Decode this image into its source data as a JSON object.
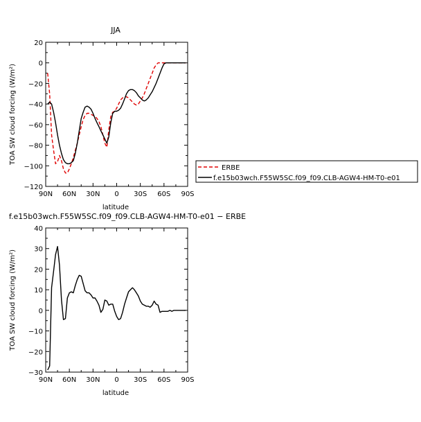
{
  "chart_data": [
    {
      "type": "line",
      "title": "JJA",
      "xlabel": "latitude",
      "ylabel": "TOA SW cloud forcing (W/m²)",
      "x_tick_labels": [
        "90N",
        "60N",
        "30N",
        "0",
        "30S",
        "60S",
        "90S"
      ],
      "xlim": [
        90,
        -90
      ],
      "ylim": [
        -120,
        20
      ],
      "y_ticks": [
        -120,
        -100,
        -80,
        -60,
        -40,
        -20,
        0,
        20
      ],
      "y_tick_labels": [
        "−120",
        "−100",
        "−80",
        "−60",
        "−40",
        "−20",
        "0",
        "20"
      ],
      "legend_position": "right",
      "series": [
        {
          "name": "ERBE",
          "color": "#e00000",
          "dash": "dashed",
          "x": [
            87.5,
            85,
            82.5,
            80,
            77.5,
            75,
            72.5,
            70,
            67.5,
            65,
            62.5,
            60,
            57.5,
            55,
            52.5,
            50,
            47.5,
            45,
            42.5,
            40,
            37.5,
            35,
            32.5,
            30,
            27.5,
            25,
            22.5,
            20,
            17.5,
            15,
            12.5,
            10,
            7.5,
            5,
            2.5,
            0,
            -2.5,
            -5,
            -7.5,
            -10,
            -12.5,
            -15,
            -17.5,
            -20,
            -22.5,
            -25,
            -27.5,
            -30,
            -32.5,
            -35,
            -37.5,
            -40,
            -42.5,
            -45,
            -47.5,
            -50,
            -52.5,
            -55,
            -57.5,
            -60,
            -62.5,
            -65,
            -67.5,
            -70,
            -72.5,
            -75,
            -77.5,
            -80,
            -82.5,
            -85,
            -87.5
          ],
          "values": [
            -10,
            -30,
            -70,
            -85,
            -98,
            -96,
            -90,
            -95,
            -103,
            -107,
            -107,
            -103,
            -98,
            -92,
            -85,
            -78,
            -70,
            -62,
            -55,
            -51,
            -49,
            -49,
            -50,
            -51,
            -52,
            -54,
            -57,
            -62,
            -70,
            -78,
            -82,
            -65,
            -52,
            -48,
            -47,
            -44,
            -40,
            -36,
            -34,
            -33,
            -33,
            -34,
            -36,
            -38,
            -40,
            -41,
            -40,
            -37,
            -34,
            -30,
            -25,
            -20,
            -15,
            -10,
            -5,
            -2,
            0,
            0,
            0,
            0,
            0,
            0,
            0,
            0,
            0,
            0,
            0,
            0,
            0,
            0,
            0
          ]
        },
        {
          "name": "f.e15b03wch.F55W5SC.f09_f09.CLB-AGW4-HM-T0-e01",
          "color": "#000000",
          "dash": "solid",
          "x": [
            87.5,
            85,
            82.5,
            80,
            77.5,
            75,
            72.5,
            70,
            67.5,
            65,
            62.5,
            60,
            57.5,
            55,
            52.5,
            50,
            47.5,
            45,
            42.5,
            40,
            37.5,
            35,
            32.5,
            30,
            27.5,
            25,
            22.5,
            20,
            17.5,
            15,
            12.5,
            10,
            7.5,
            5,
            2.5,
            0,
            -2.5,
            -5,
            -7.5,
            -10,
            -12.5,
            -15,
            -17.5,
            -20,
            -22.5,
            -25,
            -27.5,
            -30,
            -32.5,
            -35,
            -37.5,
            -40,
            -42.5,
            -45,
            -47.5,
            -50,
            -52.5,
            -55,
            -57.5,
            -60,
            -62.5,
            -65,
            -67.5,
            -70,
            -72.5,
            -75,
            -77.5,
            -80,
            -82.5,
            -85,
            -87.5
          ],
          "values": [
            -40,
            -38,
            -40,
            -48,
            -58,
            -70,
            -80,
            -88,
            -94,
            -97,
            -98,
            -98,
            -97,
            -95,
            -88,
            -78,
            -66,
            -54,
            -48,
            -43,
            -42,
            -43,
            -45,
            -49,
            -54,
            -58,
            -62,
            -66,
            -70,
            -74,
            -78,
            -72,
            -58,
            -49,
            -47,
            -47,
            -46,
            -44,
            -40,
            -35,
            -30,
            -27,
            -26,
            -26,
            -27,
            -29,
            -32,
            -34,
            -36,
            -37,
            -36,
            -34,
            -31,
            -28,
            -24,
            -20,
            -15,
            -10,
            -5,
            -1,
            0,
            0,
            0,
            0,
            0,
            0,
            0,
            0,
            0,
            0,
            0
          ]
        }
      ]
    },
    {
      "type": "line",
      "title": "f.e15b03wch.F55W5SC.f09_f09.CLB-AGW4-HM-T0-e01 − ERBE",
      "xlabel": "latitude",
      "ylabel": "TOA SW cloud forcing (W/m²)",
      "x_tick_labels": [
        "90N",
        "60N",
        "30N",
        "0",
        "30S",
        "60S",
        "90S"
      ],
      "xlim": [
        90,
        -90
      ],
      "ylim": [
        -30,
        40
      ],
      "y_ticks": [
        -30,
        -20,
        -10,
        0,
        10,
        20,
        30,
        40
      ],
      "y_tick_labels": [
        "−30",
        "−20",
        "−10",
        "0",
        "10",
        "20",
        "30",
        "40"
      ],
      "series": [
        {
          "color": "#000000",
          "dash": "solid",
          "x": [
            87.5,
            85,
            82.5,
            80,
            77.5,
            75,
            72.5,
            70,
            67.5,
            65,
            62.5,
            60,
            57.5,
            55,
            52.5,
            50,
            47.5,
            45,
            42.5,
            40,
            37.5,
            35,
            32.5,
            30,
            27.5,
            25,
            22.5,
            20,
            17.5,
            15,
            12.5,
            10,
            7.5,
            5,
            2.5,
            0,
            -2.5,
            -5,
            -7.5,
            -10,
            -12.5,
            -15,
            -17.5,
            -20,
            -22.5,
            -25,
            -27.5,
            -30,
            -32.5,
            -35,
            -37.5,
            -40,
            -42.5,
            -45,
            -47.5,
            -50,
            -52.5,
            -55,
            -57.5,
            -60,
            -62.5,
            -65,
            -67.5,
            -70,
            -72.5,
            -75,
            -77.5,
            -80,
            -82.5,
            -85,
            -87.5
          ],
          "values": [
            -29,
            -27,
            11,
            19,
            27,
            31,
            22,
            5,
            -4.5,
            -4,
            6,
            8.5,
            9,
            8.5,
            12,
            15,
            17,
            16.5,
            13,
            9.5,
            8.5,
            8.5,
            7.5,
            6,
            6,
            4.5,
            2.5,
            -1,
            0.5,
            5,
            4.5,
            2.5,
            3,
            3,
            -0.5,
            -3,
            -4.5,
            -4,
            -1,
            3,
            6,
            9,
            10,
            11,
            10,
            8.5,
            7,
            4.5,
            3,
            2.5,
            2,
            2,
            1.5,
            2.5,
            4.5,
            3,
            2.5,
            -1,
            -0.5,
            -0.5,
            -0.5,
            -0.5,
            0,
            -0.5,
            0,
            0,
            0,
            0,
            0,
            0,
            0
          ]
        }
      ]
    }
  ]
}
